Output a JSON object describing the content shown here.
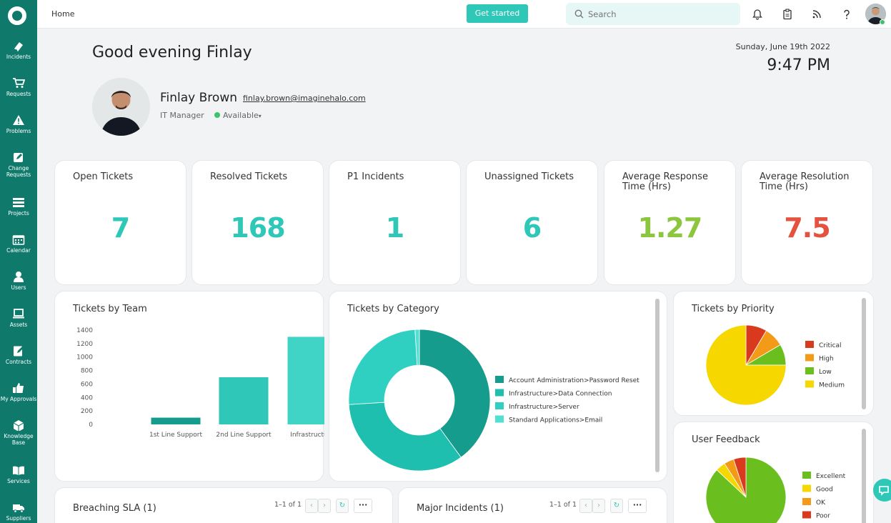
{
  "sidebar": {
    "items": [
      {
        "label": "Incidents",
        "icon": "incident-icon"
      },
      {
        "label": "Requests",
        "icon": "cart-icon"
      },
      {
        "label": "Problems",
        "icon": "warning-icon"
      },
      {
        "label": "Change\nRequests",
        "icon": "edit-icon"
      },
      {
        "label": "Projects",
        "icon": "projects-icon"
      },
      {
        "label": "Calendar",
        "icon": "calendar-icon"
      },
      {
        "label": "Users",
        "icon": "user-icon"
      },
      {
        "label": "Assets",
        "icon": "laptop-icon"
      },
      {
        "label": "Contracts",
        "icon": "contract-icon"
      },
      {
        "label": "My Approvals",
        "icon": "thumbs-up-icon"
      },
      {
        "label": "Knowledge\nBase",
        "icon": "cube-icon"
      },
      {
        "label": "Services",
        "icon": "book-icon"
      },
      {
        "label": "Suppliers",
        "icon": "truck-icon"
      }
    ]
  },
  "topbar": {
    "breadcrumb": "Home",
    "get_started": "Get started",
    "search_placeholder": "Search"
  },
  "header": {
    "greeting": "Good evening Finlay",
    "date": "Sunday, June 19th 2022",
    "time": "9:47 PM"
  },
  "user": {
    "name": "Finlay Brown",
    "email": "finlay.brown@imaginehalo.com",
    "role": "IT Manager",
    "status": "Available"
  },
  "stats": [
    {
      "title": "Open Tickets",
      "value": "7",
      "color": "#2fc7b8"
    },
    {
      "title": "Resolved Tickets",
      "value": "168",
      "color": "#2fc7b8"
    },
    {
      "title": "P1 Incidents",
      "value": "1",
      "color": "#2fc7b8"
    },
    {
      "title": "Unassigned Tickets",
      "value": "6",
      "color": "#2fc7b8"
    },
    {
      "title": "Average Response Time (Hrs)",
      "value": "1.27",
      "color": "#8cc63f"
    },
    {
      "title": "Average Resolution Time (Hrs)",
      "value": "7.5",
      "color": "#e3533f"
    }
  ],
  "panels": {
    "team": "Tickets by Team",
    "category": "Tickets by Category",
    "priority": "Tickets by Priority",
    "feedback": "User Feedback",
    "breaching": "Breaching SLA (1)",
    "major": "Major Incidents (1)",
    "pager_text": "1–1 of 1"
  },
  "chart_data": [
    {
      "type": "bar",
      "title": "Tickets by Team",
      "categories": [
        "1st Line Support",
        "2nd Line Support",
        "Infrastructure"
      ],
      "values": [
        100,
        700,
        1300
      ],
      "ylim": [
        0,
        1400
      ],
      "yticks": [
        "1400",
        "1200",
        "1000",
        "800",
        "600",
        "400",
        "200",
        "0"
      ],
      "colors": [
        "#159c8c",
        "#2fc7b8",
        "#3fd4c5"
      ]
    },
    {
      "type": "pie",
      "title": "Tickets by Category",
      "donut": true,
      "labels": [
        "Account Administration>Password Reset",
        "Infrastructure>Data Connection",
        "Infrastructure>Server",
        "Standard Applications>Email"
      ],
      "values": [
        40,
        34,
        25,
        1
      ],
      "colors": [
        "#159c8c",
        "#1fbfb0",
        "#2fcfc1",
        "#4fe0d2"
      ]
    },
    {
      "type": "pie",
      "title": "Tickets by Priority",
      "labels": [
        "Critical",
        "High",
        "Low",
        "Medium"
      ],
      "values": [
        8.5,
        8,
        8.5,
        75
      ],
      "colors": [
        "#d93a1e",
        "#f39a18",
        "#6abf1e",
        "#f6d800"
      ]
    },
    {
      "type": "pie",
      "title": "User Feedback",
      "labels": [
        "Excellent",
        "Good",
        "OK",
        "Poor"
      ],
      "values": [
        87,
        4,
        4,
        5
      ],
      "colors": [
        "#6abf1e",
        "#f6d800",
        "#f39a18",
        "#d93a1e"
      ]
    }
  ]
}
